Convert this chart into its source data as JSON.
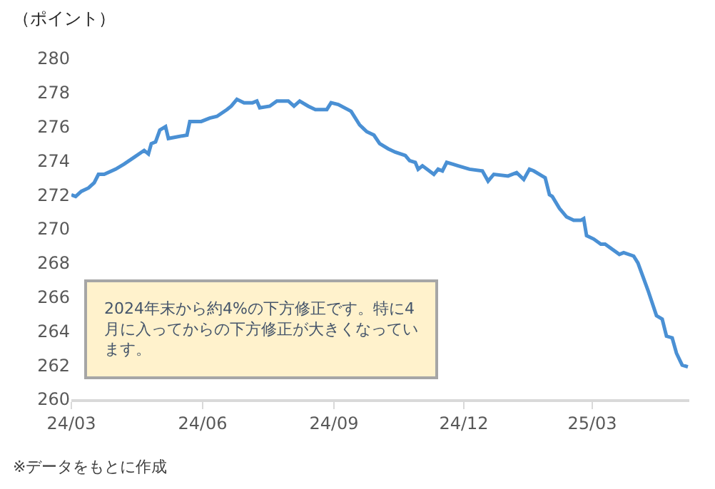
{
  "chart_data": {
    "type": "line",
    "ylabel": "（ポイント）",
    "x": [
      "2024-03-01",
      "2024-03-04",
      "2024-03-08",
      "2024-03-13",
      "2024-03-17",
      "2024-03-20",
      "2024-03-24",
      "2024-04-01",
      "2024-04-07",
      "2024-04-14",
      "2024-04-21",
      "2024-04-24",
      "2024-04-26",
      "2024-04-29",
      "2024-05-02",
      "2024-05-06",
      "2024-05-08",
      "2024-05-14",
      "2024-05-21",
      "2024-05-23",
      "2024-05-31",
      "2024-06-06",
      "2024-06-11",
      "2024-06-18",
      "2024-06-21",
      "2024-06-25",
      "2024-06-30",
      "2024-07-06",
      "2024-07-09",
      "2024-07-11",
      "2024-07-18",
      "2024-07-23",
      "2024-07-31",
      "2024-08-04",
      "2024-08-08",
      "2024-08-14",
      "2024-08-19",
      "2024-08-27",
      "2024-08-30",
      "2024-09-04",
      "2024-09-13",
      "2024-09-19",
      "2024-09-24",
      "2024-09-29",
      "2024-10-03",
      "2024-10-09",
      "2024-10-14",
      "2024-10-21",
      "2024-10-24",
      "2024-10-28",
      "2024-10-30",
      "2024-11-02",
      "2024-11-10",
      "2024-11-13",
      "2024-11-16",
      "2024-11-19",
      "2024-11-23",
      "2024-11-27",
      "2024-12-05",
      "2024-12-14",
      "2024-12-18",
      "2024-12-22",
      "2025-01-01",
      "2025-01-07",
      "2025-01-12",
      "2025-01-16",
      "2025-01-19",
      "2025-01-27",
      "2025-01-30",
      "2025-02-01",
      "2025-02-06",
      "2025-02-11",
      "2025-02-16",
      "2025-02-21",
      "2025-02-23",
      "2025-02-25",
      "2025-03-02",
      "2025-03-07",
      "2025-03-10",
      "2025-03-20",
      "2025-03-23",
      "2025-03-30",
      "2025-04-02",
      "2025-04-09",
      "2025-04-15",
      "2025-04-19",
      "2025-04-22",
      "2025-04-26",
      "2025-04-29",
      "2025-05-03",
      "2025-05-07"
    ],
    "series": [
      {
        "color": "#4a90d4",
        "values": [
          272.0,
          271.9,
          272.2,
          272.4,
          272.7,
          273.2,
          273.2,
          273.5,
          273.8,
          274.2,
          274.6,
          274.4,
          275.0,
          275.1,
          275.8,
          276.0,
          275.3,
          275.4,
          275.5,
          276.3,
          276.3,
          276.5,
          276.6,
          277.0,
          277.2,
          277.6,
          277.4,
          277.4,
          277.5,
          277.1,
          277.2,
          277.5,
          277.5,
          277.2,
          277.5,
          277.2,
          277.0,
          277.0,
          277.4,
          277.3,
          276.9,
          276.1,
          275.7,
          275.5,
          275.0,
          274.7,
          274.5,
          274.3,
          274.0,
          273.9,
          273.5,
          273.7,
          273.2,
          273.5,
          273.4,
          273.9,
          273.8,
          273.7,
          273.5,
          273.4,
          272.8,
          273.2,
          273.1,
          273.3,
          272.9,
          273.5,
          273.4,
          273.0,
          272.0,
          271.9,
          271.2,
          270.7,
          270.5,
          270.5,
          270.6,
          269.6,
          269.4,
          269.1,
          269.1,
          268.5,
          268.6,
          268.4,
          268.0,
          266.4,
          264.9,
          264.7,
          263.7,
          263.6,
          262.7,
          262.0,
          261.9
        ]
      }
    ],
    "xlim": [
      "2024-03-01",
      "2025-05-08"
    ],
    "xticks": [
      {
        "value": "2024-03-01",
        "label": "24/03"
      },
      {
        "value": "2024-06-01",
        "label": "24/06"
      },
      {
        "value": "2024-09-01",
        "label": "24/09"
      },
      {
        "value": "2024-12-01",
        "label": "24/12"
      },
      {
        "value": "2025-03-01",
        "label": "25/03"
      }
    ],
    "ylim": [
      260,
      280
    ],
    "yticks": [
      260,
      262,
      264,
      266,
      268,
      270,
      272,
      274,
      276,
      278,
      280
    ],
    "grid": false,
    "marker": "none",
    "line_style": "solid",
    "annotations": [
      "2024年末から約4%の下方修正です。特に4月に入ってからの下方修正が大きくなっています。",
      "※データをもとに作成"
    ]
  }
}
